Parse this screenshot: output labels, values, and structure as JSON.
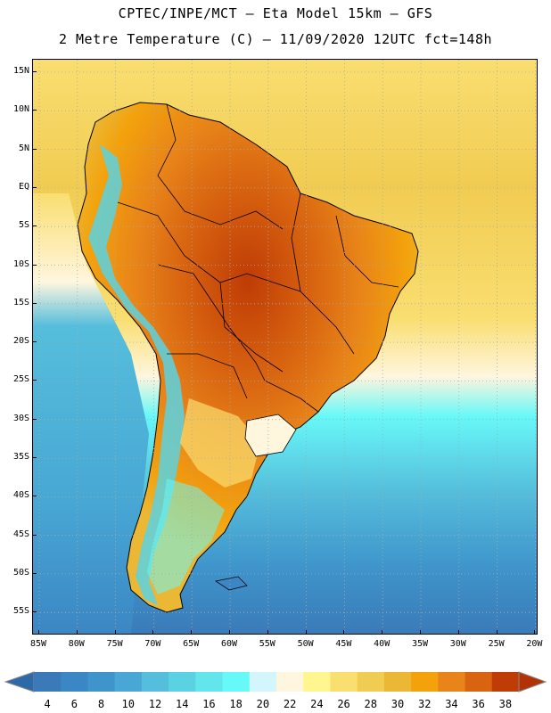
{
  "header": {
    "title_line1": "CPTEC/INPE/MCT –  Eta Model 15km – GFS",
    "title_line2": "2 Metre Temperature (C) – 11/09/2020 12UTC fct=148h"
  },
  "map": {
    "region": "South America",
    "variable": "2 Metre Temperature",
    "units": "C",
    "lat_labels": [
      "15N",
      "10N",
      "5N",
      "EQ",
      "5S",
      "10S",
      "15S",
      "20S",
      "25S",
      "30S",
      "35S",
      "40S",
      "45S",
      "50S",
      "55S"
    ],
    "lon_labels": [
      "85W",
      "80W",
      "75W",
      "70W",
      "65W",
      "60W",
      "55W",
      "50W",
      "45W",
      "40W",
      "35W",
      "30W",
      "25W",
      "20W"
    ]
  },
  "colorbar": {
    "labels": [
      "4",
      "6",
      "8",
      "10",
      "12",
      "14",
      "16",
      "18",
      "20",
      "22",
      "24",
      "26",
      "28",
      "30",
      "32",
      "34",
      "36",
      "38"
    ],
    "colors": [
      "#3a7ab8",
      "#3b86c4",
      "#3f95cb",
      "#48a7d4",
      "#55bedc",
      "#5ad2e2",
      "#62e6eb",
      "#67f8f8",
      "#d2f6fb",
      "#fff6de",
      "#fff690",
      "#f9de70",
      "#f1cc52",
      "#ebb836",
      "#f3a20c",
      "#e88419",
      "#d86410",
      "#bf3c06"
    ],
    "under_color": "#2f6aa8",
    "over_color": "#b23205"
  }
}
